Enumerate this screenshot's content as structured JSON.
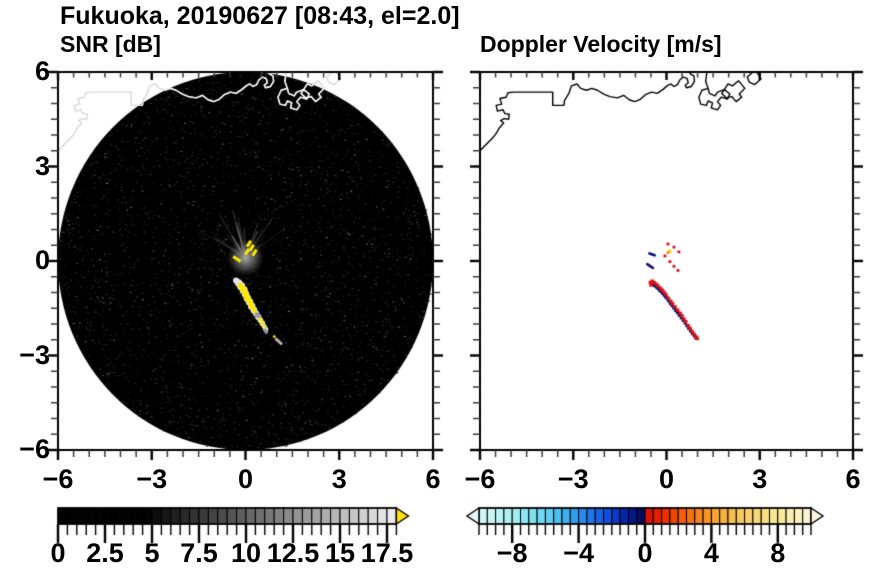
{
  "title": "Fukuoka, 20190627 [08:43, el=2.0]",
  "chart_data": {
    "type": "heatmap",
    "title": "Fukuoka, 20190627 [08:43, el=2.0]",
    "station": "Fukuoka",
    "date": "20190627",
    "time": "08:43",
    "elevation": "2.0",
    "xlim": [
      -6,
      6
    ],
    "ylim": [
      -6,
      6
    ],
    "x_major_ticks": [
      -6,
      -3,
      0,
      3,
      6
    ],
    "x_tick_labels": [
      "−6",
      "−3",
      "0",
      "3",
      "6"
    ],
    "y_major_ticks": [
      6,
      3,
      0,
      -3,
      -6
    ],
    "y_tick_labels": [
      "6",
      "3",
      "0",
      "−3",
      "−6"
    ],
    "minor_tick_step": 0.5,
    "grid": false,
    "panels": [
      {
        "subtitle": "SNR [dB]",
        "scan_area": {
          "center": [
            0,
            0
          ],
          "radius": 6,
          "background": "#000000"
        },
        "colorbar": {
          "range": [
            0,
            18
          ],
          "cell_step": 0.5,
          "labeled_ticks": [
            0,
            2.5,
            5,
            7.5,
            10,
            12.5,
            15,
            17.5
          ],
          "tick_labels": [
            "0",
            "2.5",
            "5",
            "7.5",
            "10",
            "12.5",
            "15",
            "17.5"
          ],
          "black_until": 5,
          "gray_start": "#0a0a0a",
          "gray_end": "#efefef",
          "over_arrow_color": "#ffe400"
        },
        "features": {
          "origin_clutter": {
            "center": [
              0,
              0.1
            ],
            "radius": 0.6,
            "color": "#8a8a8a",
            "spoke_color": "#9a9a9a",
            "spokes": 26
          },
          "yellow_mark_color": "#ffe800",
          "yellow_marks": [
            [
              -0.3,
              0.08
            ],
            [
              0.05,
              0.29
            ],
            [
              0.11,
              0.55
            ],
            [
              0.2,
              0.42
            ],
            [
              0.29,
              0.26
            ]
          ],
          "echo_streak": {
            "halo_color": "#e4e4e4",
            "core_color": "#ffe800",
            "gray_color": "#9a9a9a",
            "halo": [
              [
                -0.3,
                -0.62,
                0.1
              ],
              [
                -0.22,
                -0.7,
                0.12
              ],
              [
                -0.14,
                -0.8,
                0.13
              ],
              [
                -0.06,
                -0.92,
                0.13
              ],
              [
                0.0,
                -1.05,
                0.12
              ],
              [
                0.06,
                -1.18,
                0.12
              ],
              [
                0.13,
                -1.3,
                0.12
              ],
              [
                0.2,
                -1.44,
                0.12
              ],
              [
                0.27,
                -1.56,
                0.11
              ],
              [
                0.34,
                -1.67,
                0.1
              ],
              [
                0.41,
                -1.78,
                0.1
              ],
              [
                0.48,
                -1.88,
                0.09
              ],
              [
                0.54,
                -1.98,
                0.09
              ],
              [
                0.6,
                -2.08,
                0.08
              ],
              [
                0.65,
                -2.17,
                0.08
              ]
            ],
            "core": [
              [
                -0.17,
                -0.76,
                0.08
              ],
              [
                -0.09,
                -0.87,
                0.1
              ],
              [
                -0.02,
                -1.0,
                0.1
              ],
              [
                0.04,
                -1.12,
                0.1
              ],
              [
                0.1,
                -1.24,
                0.1
              ],
              [
                0.17,
                -1.37,
                0.09
              ],
              [
                0.23,
                -1.49,
                0.08
              ],
              [
                0.29,
                -1.58,
                0.07
              ],
              [
                0.47,
                -1.86,
                0.06
              ],
              [
                0.54,
                -1.97,
                0.06
              ],
              [
                0.6,
                -2.07,
                0.05
              ]
            ],
            "gray_cells": [
              [
                0.36,
                -1.7,
                0.07
              ],
              [
                0.41,
                -1.76,
                0.06
              ],
              [
                0.63,
                -2.2,
                0.06
              ],
              [
                0.67,
                -2.26,
                0.05
              ]
            ],
            "detached_gray_dash": [
              [
                0.98,
                -2.48
              ],
              [
                1.14,
                -2.62
              ]
            ],
            "detached_yellow_dot": [
              0.92,
              -2.4,
              0.045
            ]
          }
        }
      },
      {
        "subtitle": "Doppler Velocity [m/s]",
        "colorbar": {
          "range": [
            -10,
            10
          ],
          "cell_step": 0.5,
          "labeled_ticks": [
            -8,
            -4,
            0,
            4,
            8
          ],
          "tick_labels": [
            "−8",
            "−4",
            "0",
            "4",
            "8"
          ],
          "under_arrow_color": "#e2fbfb",
          "over_arrow_color": "#fcf8e6",
          "stops": [
            [
              -10,
              "#d8f8f8"
            ],
            [
              -8,
              "#a8f0f2"
            ],
            [
              -6,
              "#66d6f2"
            ],
            [
              -4.5,
              "#34a8f0"
            ],
            [
              -3,
              "#1c6cea"
            ],
            [
              -2,
              "#0c44d6"
            ],
            [
              -1.25,
              "#0626ac"
            ],
            [
              -0.5,
              "#001078"
            ],
            [
              -0.05,
              "#000850"
            ],
            [
              0.05,
              "#d80c0c"
            ],
            [
              1,
              "#ea2400"
            ],
            [
              2,
              "#f25200"
            ],
            [
              3,
              "#f57c14"
            ],
            [
              4,
              "#f89c2c"
            ],
            [
              5,
              "#f8b848"
            ],
            [
              6,
              "#f8cc64"
            ],
            [
              7,
              "#f8dc7c"
            ],
            [
              8,
              "#f8e898"
            ],
            [
              9,
              "#faf0b8"
            ],
            [
              10,
              "#fbf5d6"
            ]
          ]
        },
        "features": {
          "dots": [
            {
              "x": 0.05,
              "y": 0.54,
              "color": "#dd1111"
            },
            {
              "x": 0.24,
              "y": 0.44,
              "color": "#dd1111"
            },
            {
              "x": 0.4,
              "y": 0.29,
              "color": "#dd1111"
            },
            {
              "x": 0.11,
              "y": 0.32,
              "color": "#ffd400"
            },
            {
              "x": 0.05,
              "y": 0.27,
              "color": "#ff8800"
            },
            {
              "x": -0.05,
              "y": 0.16,
              "color": "#dd1111"
            },
            {
              "x": 0.11,
              "y": -0.02,
              "color": "#dd1111"
            },
            {
              "x": 0.24,
              "y": -0.17,
              "color": "#dd1111"
            },
            {
              "x": 0.37,
              "y": -0.3,
              "color": "#dd1111"
            }
          ],
          "dashes": [
            {
              "from": [
                -0.55,
                0.24
              ],
              "to": [
                -0.38,
                0.18
              ],
              "color": "#10107a"
            },
            {
              "from": [
                -0.62,
                -0.1
              ],
              "to": [
                -0.44,
                -0.22
              ],
              "color": "#10107a"
            }
          ],
          "dipole_streak": {
            "navy": "#10107a",
            "red": "#dd1414",
            "navy_cells": [
              [
                -0.44,
                -0.74
              ],
              [
                -0.38,
                -0.78
              ],
              [
                -0.32,
                -0.82
              ],
              [
                -0.27,
                -0.87
              ],
              [
                -0.22,
                -0.92
              ],
              [
                -0.17,
                -0.97
              ],
              [
                -0.12,
                -1.02
              ],
              [
                -0.07,
                -1.08
              ],
              [
                -0.02,
                -1.14
              ],
              [
                0.03,
                -1.2
              ],
              [
                0.08,
                -1.27
              ],
              [
                0.13,
                -1.34
              ],
              [
                0.18,
                -1.41
              ],
              [
                0.24,
                -1.49
              ],
              [
                0.3,
                -1.57
              ],
              [
                0.36,
                -1.64
              ],
              [
                0.42,
                -1.72
              ],
              [
                0.48,
                -1.8
              ],
              [
                0.54,
                -1.88
              ],
              [
                0.6,
                -1.96
              ],
              [
                0.66,
                -2.05
              ],
              [
                0.72,
                -2.14
              ],
              [
                0.78,
                -2.22
              ],
              [
                0.84,
                -2.3
              ],
              [
                0.9,
                -2.37
              ],
              [
                0.95,
                -2.44
              ]
            ],
            "red_cells": [
              [
                -0.52,
                -0.68
              ],
              [
                -0.46,
                -0.64
              ],
              [
                -0.4,
                -0.68
              ],
              [
                -0.5,
                -0.76
              ],
              [
                -0.34,
                -0.73
              ],
              [
                -0.28,
                -0.78
              ],
              [
                -0.2,
                -0.86
              ],
              [
                -0.14,
                -0.92
              ],
              [
                -0.08,
                -0.99
              ],
              [
                -0.02,
                -1.06
              ],
              [
                0.06,
                -1.18
              ],
              [
                0.14,
                -1.28
              ],
              [
                0.2,
                -1.36
              ],
              [
                0.28,
                -1.46
              ],
              [
                0.36,
                -1.56
              ],
              [
                0.44,
                -1.66
              ],
              [
                0.5,
                -1.74
              ],
              [
                0.56,
                -1.84
              ],
              [
                0.62,
                -1.92
              ],
              [
                0.7,
                -2.06
              ],
              [
                0.76,
                -2.14
              ],
              [
                0.82,
                -2.24
              ],
              [
                0.88,
                -2.32
              ],
              [
                0.94,
                -2.4
              ],
              [
                0.99,
                -2.46
              ]
            ]
          }
        }
      }
    ],
    "coastline": {
      "color_left_panel": "#ffffff",
      "color_left_panel_outside_scan": "#d8d8d8",
      "color_right_panel": "#000000",
      "paths": [
        [
          [
            -6.0,
            3.5
          ],
          [
            -5.82,
            3.68
          ],
          [
            -5.62,
            3.88
          ],
          [
            -5.5,
            4.02
          ],
          [
            -5.38,
            4.22
          ],
          [
            -5.24,
            4.38
          ],
          [
            -5.34,
            4.46
          ],
          [
            -5.22,
            4.52
          ],
          [
            -5.08,
            4.5
          ],
          [
            -5.06,
            4.66
          ],
          [
            -5.2,
            4.68
          ],
          [
            -5.26,
            4.8
          ],
          [
            -5.44,
            4.76
          ],
          [
            -5.48,
            4.94
          ],
          [
            -5.3,
            4.98
          ],
          [
            -5.36,
            5.16
          ],
          [
            -5.16,
            5.2
          ],
          [
            -5.1,
            5.34
          ],
          [
            -4.92,
            5.36
          ],
          [
            -3.66,
            5.36
          ],
          [
            -3.66,
            4.94
          ],
          [
            -3.3,
            4.94
          ],
          [
            -3.28,
            5.1
          ],
          [
            -3.14,
            5.32
          ],
          [
            -3.06,
            5.56
          ],
          [
            -2.88,
            5.62
          ],
          [
            -2.76,
            5.48
          ],
          [
            -2.58,
            5.42
          ],
          [
            -2.4,
            5.48
          ],
          [
            -2.22,
            5.42
          ],
          [
            -2.02,
            5.3
          ],
          [
            -1.82,
            5.22
          ],
          [
            -1.58,
            5.18
          ],
          [
            -1.38,
            5.26
          ],
          [
            -1.2,
            5.12
          ],
          [
            -1.02,
            5.06
          ],
          [
            -0.86,
            5.12
          ],
          [
            -0.68,
            5.28
          ],
          [
            -0.48,
            5.36
          ],
          [
            -0.3,
            5.32
          ],
          [
            -0.12,
            5.44
          ],
          [
            0.02,
            5.56
          ],
          [
            0.14,
            5.62
          ],
          [
            0.24,
            5.54
          ],
          [
            0.36,
            5.6
          ],
          [
            0.42,
            5.74
          ],
          [
            0.54,
            5.84
          ],
          [
            0.66,
            5.8
          ],
          [
            0.7,
            5.66
          ],
          [
            0.6,
            5.58
          ],
          [
            0.64,
            5.5
          ],
          [
            0.8,
            5.54
          ],
          [
            0.9,
            5.7
          ],
          [
            0.88,
            5.88
          ],
          [
            0.76,
            5.94
          ],
          [
            0.78,
            6.0
          ]
        ],
        [
          [
            1.3,
            6.0
          ],
          [
            1.26,
            5.7
          ],
          [
            1.34,
            5.48
          ],
          [
            1.14,
            5.42
          ],
          [
            1.04,
            5.2
          ],
          [
            1.1,
            4.98
          ],
          [
            1.28,
            4.94
          ],
          [
            1.34,
            5.08
          ],
          [
            1.48,
            5.02
          ],
          [
            1.44,
            4.86
          ],
          [
            1.64,
            4.8
          ],
          [
            1.74,
            4.94
          ],
          [
            1.64,
            5.06
          ],
          [
            1.76,
            5.2
          ],
          [
            1.96,
            5.14
          ],
          [
            2.04,
            5.3
          ],
          [
            1.86,
            5.44
          ],
          [
            1.64,
            5.36
          ],
          [
            1.56,
            5.24
          ],
          [
            1.38,
            5.32
          ],
          [
            1.34,
            5.48
          ]
        ],
        [
          [
            1.78,
            5.32
          ],
          [
            1.98,
            5.62
          ],
          [
            2.12,
            5.56
          ],
          [
            2.32,
            5.72
          ],
          [
            2.52,
            5.48
          ],
          [
            2.34,
            5.3
          ],
          [
            2.42,
            5.2
          ],
          [
            2.24,
            5.06
          ],
          [
            2.1,
            5.22
          ],
          [
            1.92,
            5.18
          ],
          [
            1.78,
            5.32
          ]
        ],
        [
          [
            2.6,
            5.84
          ],
          [
            2.78,
            6.0
          ],
          [
            2.92,
            5.98
          ],
          [
            3.04,
            5.78
          ],
          [
            2.84,
            5.6
          ],
          [
            2.66,
            5.68
          ],
          [
            2.6,
            5.84
          ]
        ]
      ]
    },
    "noise": {
      "seed": 1234,
      "speckles": 3000,
      "bright_speckles": 60
    }
  }
}
